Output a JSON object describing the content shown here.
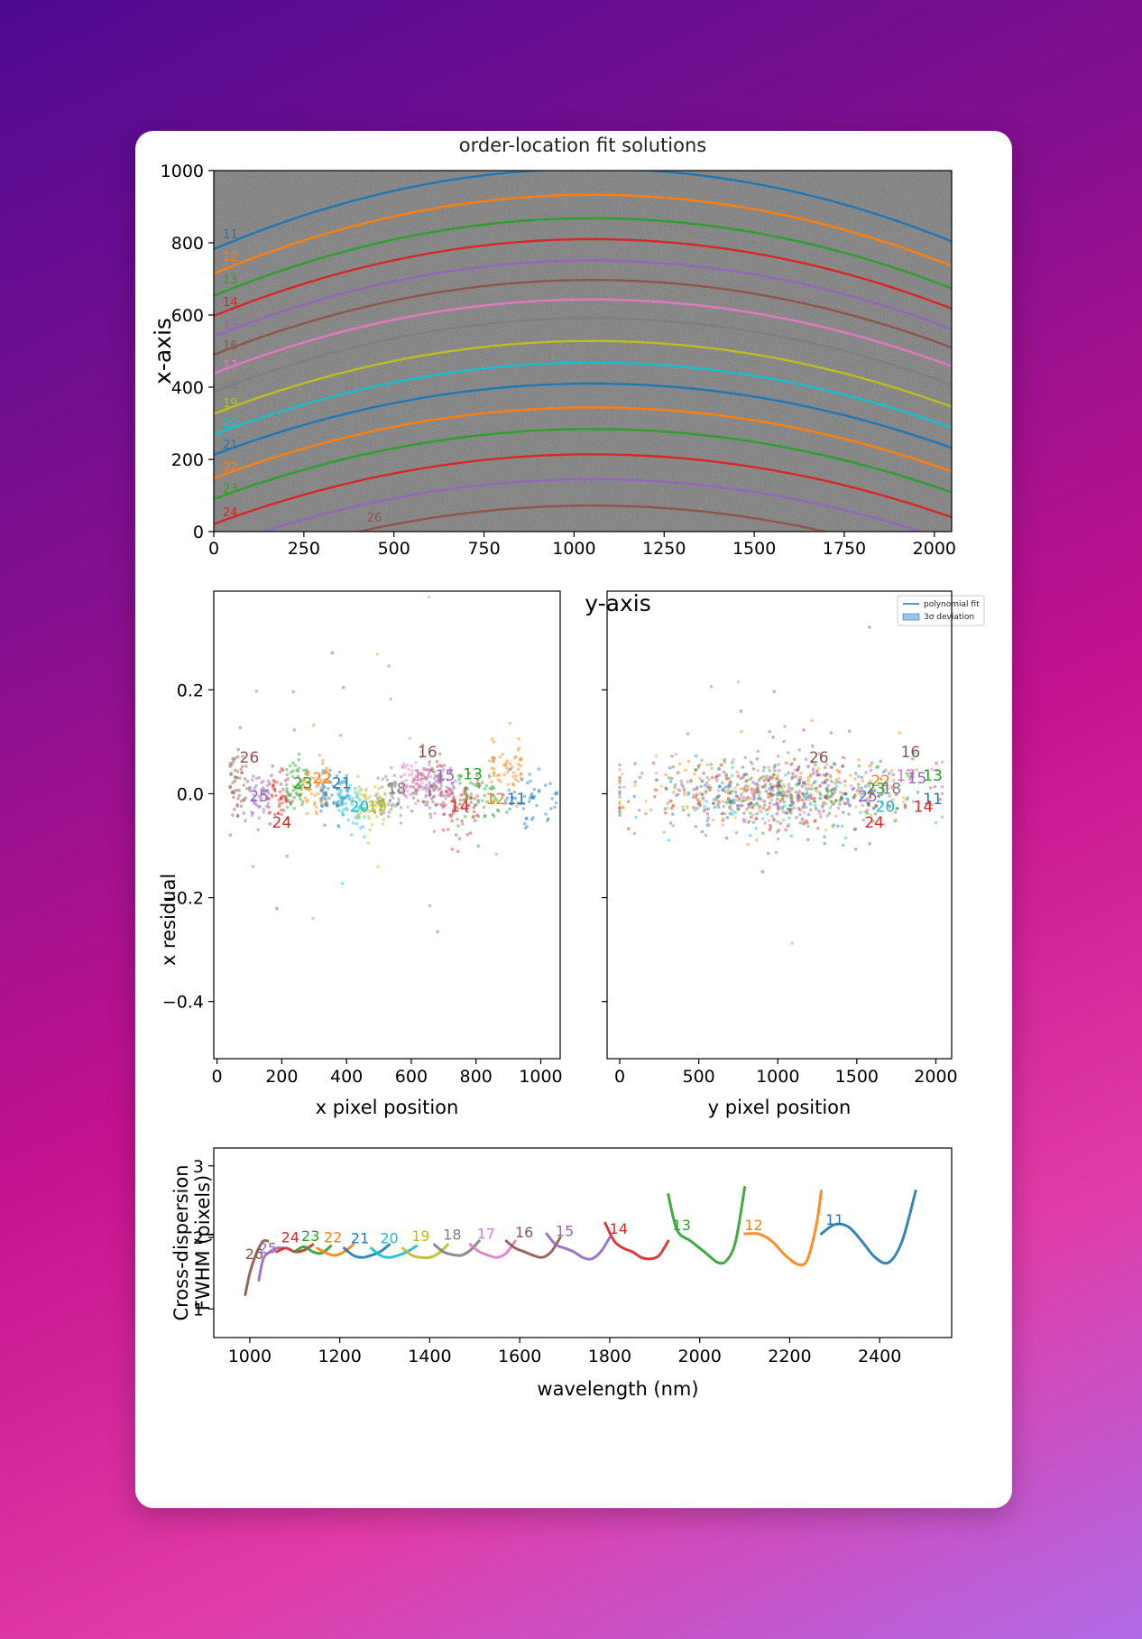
{
  "colors": {
    "tab10": [
      "#1f77b4",
      "#ff7f0e",
      "#2ca02c",
      "#d62728",
      "#9467bd",
      "#8c564b",
      "#e377c2",
      "#7f7f7f",
      "#bcbd22",
      "#17becf"
    ],
    "image_background": "#7a7a7a"
  },
  "chart_data": [
    {
      "id": "order-location",
      "type": "line",
      "title": "order-location fit solutions",
      "xlabel": "y-axis",
      "ylabel": "x-axis",
      "xlim": [
        0,
        2048
      ],
      "ylim": [
        0,
        1000
      ],
      "xticks": [
        "0",
        "250",
        "500",
        "750",
        "1000",
        "1250",
        "1500",
        "1750",
        "2000"
      ],
      "yticks": [
        "0",
        "200",
        "400",
        "600",
        "800",
        "1000"
      ],
      "legend": {
        "placement": "below-right",
        "entries": [
          "polynomial fit",
          "3σ deviation"
        ]
      },
      "curve_model": "x(y) = center - a*(y - 1050)^2",
      "series": [
        {
          "name": "11",
          "center": 1005,
          "a": 0.000202,
          "color": "#1f77b4"
        },
        {
          "name": "12",
          "center": 933,
          "a": 0.000198,
          "color": "#ff7f0e"
        },
        {
          "name": "13",
          "center": 868,
          "a": 0.000195,
          "color": "#2ca02c"
        },
        {
          "name": "14",
          "center": 810,
          "a": 0.000193,
          "color": "#d62728"
        },
        {
          "name": "15",
          "center": 751,
          "a": 0.000191,
          "color": "#9467bd"
        },
        {
          "name": "16",
          "center": 697,
          "a": 0.000188,
          "color": "#8c564b"
        },
        {
          "name": "17",
          "center": 643,
          "a": 0.000186,
          "color": "#e377c2"
        },
        {
          "name": "18",
          "center": 591,
          "a": 0.000185,
          "color": "#7f7f7f"
        },
        {
          "name": "19",
          "center": 528,
          "a": 0.000183,
          "color": "#bcbd22"
        },
        {
          "name": "20",
          "center": 468,
          "a": 0.000181,
          "color": "#17becf"
        },
        {
          "name": "21",
          "center": 410,
          "a": 0.000179,
          "color": "#1f77b4"
        },
        {
          "name": "22",
          "center": 344,
          "a": 0.000178,
          "color": "#ff7f0e"
        },
        {
          "name": "23",
          "center": 284,
          "a": 0.000176,
          "color": "#2ca02c"
        },
        {
          "name": "24",
          "center": 214,
          "a": 0.000175,
          "color": "#d62728"
        },
        {
          "name": "25",
          "center": 145,
          "a": 0.000174,
          "color": "#9467bd"
        },
        {
          "name": "26",
          "center": 72,
          "a": 0.000172,
          "color": "#8c564b"
        }
      ],
      "labels": [
        {
          "text": "11",
          "x": 25,
          "y": 812
        },
        {
          "text": "12",
          "x": 25,
          "y": 750
        },
        {
          "text": "13",
          "x": 25,
          "y": 688
        },
        {
          "text": "14",
          "x": 25,
          "y": 625
        },
        {
          "text": "15",
          "x": 25,
          "y": 562
        },
        {
          "text": "16",
          "x": 25,
          "y": 505
        },
        {
          "text": "17",
          "x": 25,
          "y": 450
        },
        {
          "text": "18",
          "x": 25,
          "y": 395
        },
        {
          "text": "19",
          "x": 25,
          "y": 345
        },
        {
          "text": "20",
          "x": 25,
          "y": 290
        },
        {
          "text": "21",
          "x": 25,
          "y": 230
        },
        {
          "text": "22",
          "x": 25,
          "y": 168
        },
        {
          "text": "23",
          "x": 25,
          "y": 108
        },
        {
          "text": "24",
          "x": 25,
          "y": 42
        },
        {
          "text": "26",
          "x": 425,
          "y": 28
        }
      ]
    },
    {
      "id": "x-residual",
      "type": "scatter",
      "xlabel": "x pixel position",
      "ylabel": "x residual",
      "xlim": [
        -10,
        1060
      ],
      "ylim": [
        -0.51,
        0.39
      ],
      "xticks": [
        "0",
        "200",
        "400",
        "600",
        "800",
        "1000"
      ],
      "yticks": [
        "0.2",
        "0.0",
        "−0.2",
        "−0.4"
      ],
      "ytick_values": [
        0.2,
        0.0,
        -0.2,
        -0.4
      ],
      "xtick_values": [
        0,
        200,
        400,
        600,
        800,
        1000
      ],
      "clusters": [
        {
          "name": "26",
          "color": "#8c564b",
          "xmin": 40,
          "xmax": 95,
          "mean": 0.02,
          "spread": 0.06,
          "n": 55
        },
        {
          "name": "25",
          "color": "#9467bd",
          "xmin": 100,
          "xmax": 160,
          "mean": -0.01,
          "spread": 0.04,
          "n": 50
        },
        {
          "name": "24",
          "color": "#d62728",
          "xmin": 160,
          "xmax": 220,
          "mean": -0.01,
          "spread": 0.05,
          "n": 50
        },
        {
          "name": "23",
          "color": "#2ca02c",
          "xmin": 210,
          "xmax": 280,
          "mean": 0.01,
          "spread": 0.05,
          "n": 55
        },
        {
          "name": "22",
          "color": "#ff7f0e",
          "xmin": 260,
          "xmax": 340,
          "mean": 0.02,
          "spread": 0.05,
          "n": 55
        },
        {
          "name": "21",
          "color": "#1f77b4",
          "xmin": 320,
          "xmax": 410,
          "mean": 0.0,
          "spread": 0.04,
          "n": 60
        },
        {
          "name": "20",
          "color": "#17becf",
          "xmin": 370,
          "xmax": 460,
          "mean": -0.02,
          "spread": 0.04,
          "n": 60
        },
        {
          "name": "19",
          "color": "#bcbd22",
          "xmin": 430,
          "xmax": 520,
          "mean": -0.02,
          "spread": 0.04,
          "n": 55
        },
        {
          "name": "18",
          "color": "#7f7f7f",
          "xmin": 480,
          "xmax": 580,
          "mean": 0.0,
          "spread": 0.04,
          "n": 55
        },
        {
          "name": "17",
          "color": "#e377c2",
          "xmin": 570,
          "xmax": 660,
          "mean": 0.03,
          "spread": 0.04,
          "n": 60
        },
        {
          "name": "16",
          "color": "#8c564b",
          "xmin": 600,
          "xmax": 700,
          "mean": 0.03,
          "spread": 0.05,
          "n": 55
        },
        {
          "name": "15",
          "color": "#9467bd",
          "xmin": 640,
          "xmax": 740,
          "mean": 0.01,
          "spread": 0.04,
          "n": 55
        },
        {
          "name": "14",
          "color": "#d62728",
          "xmin": 690,
          "xmax": 810,
          "mean": -0.02,
          "spread": 0.05,
          "n": 60
        },
        {
          "name": "13",
          "color": "#2ca02c",
          "xmin": 740,
          "xmax": 870,
          "mean": 0.0,
          "spread": 0.05,
          "n": 60
        },
        {
          "name": "12",
          "color": "#ff7f0e",
          "xmin": 840,
          "xmax": 940,
          "mean": 0.05,
          "spread": 0.06,
          "n": 55
        },
        {
          "name": "11",
          "color": "#1f77b4",
          "xmin": 880,
          "xmax": 1050,
          "mean": -0.01,
          "spread": 0.04,
          "n": 55
        }
      ],
      "labels": [
        {
          "text": "26",
          "x": 100,
          "y": 0.06,
          "color": "#8c564b"
        },
        {
          "text": "25",
          "x": 130,
          "y": -0.015,
          "color": "#9467bd"
        },
        {
          "text": "24",
          "x": 200,
          "y": -0.065,
          "color": "#d62728"
        },
        {
          "text": "23",
          "x": 265,
          "y": 0.01,
          "color": "#2ca02c"
        },
        {
          "text": "22",
          "x": 325,
          "y": 0.02,
          "color": "#ff7f0e"
        },
        {
          "text": "21",
          "x": 385,
          "y": 0.01,
          "color": "#1f77b4"
        },
        {
          "text": "20",
          "x": 440,
          "y": -0.035,
          "color": "#17becf"
        },
        {
          "text": "19",
          "x": 495,
          "y": -0.035,
          "color": "#bcbd22"
        },
        {
          "text": "18",
          "x": 555,
          "y": 0.0,
          "color": "#7f7f7f"
        },
        {
          "text": "17",
          "x": 635,
          "y": 0.025,
          "color": "#e377c2"
        },
        {
          "text": "16",
          "x": 650,
          "y": 0.07,
          "color": "#8c564b"
        },
        {
          "text": "15",
          "x": 705,
          "y": 0.025,
          "color": "#9467bd"
        },
        {
          "text": "14",
          "x": 750,
          "y": -0.035,
          "color": "#d62728"
        },
        {
          "text": "13",
          "x": 790,
          "y": 0.028,
          "color": "#2ca02c"
        },
        {
          "text": "12",
          "x": 860,
          "y": -0.02,
          "color": "#ff7f0e"
        },
        {
          "text": "11",
          "x": 925,
          "y": -0.02,
          "color": "#1f77b4"
        }
      ]
    },
    {
      "id": "y-residual",
      "type": "scatter",
      "xlabel": "y pixel position",
      "xlim": [
        -80,
        2100
      ],
      "ylim": [
        -0.51,
        0.39
      ],
      "xticks": [
        "0",
        "500",
        "1000",
        "1500",
        "2000"
      ],
      "xtick_values": [
        0,
        500,
        1000,
        1500,
        2000
      ],
      "labels": [
        {
          "text": "26",
          "x": 1260,
          "y": 0.06,
          "color": "#8c564b"
        },
        {
          "text": "16",
          "x": 1840,
          "y": 0.07,
          "color": "#8c564b"
        },
        {
          "text": "22",
          "x": 1650,
          "y": 0.015,
          "color": "#ff7f0e"
        },
        {
          "text": "17",
          "x": 1810,
          "y": 0.025,
          "color": "#e377c2"
        },
        {
          "text": "15",
          "x": 1880,
          "y": 0.02,
          "color": "#9467bd"
        },
        {
          "text": "13",
          "x": 1980,
          "y": 0.025,
          "color": "#2ca02c"
        },
        {
          "text": "23",
          "x": 1620,
          "y": 0.0,
          "color": "#2ca02c"
        },
        {
          "text": "18",
          "x": 1720,
          "y": 0.0,
          "color": "#7f7f7f"
        },
        {
          "text": "25",
          "x": 1570,
          "y": -0.015,
          "color": "#9467bd"
        },
        {
          "text": "20",
          "x": 1680,
          "y": -0.035,
          "color": "#17becf"
        },
        {
          "text": "11",
          "x": 1980,
          "y": -0.02,
          "color": "#1f77b4"
        },
        {
          "text": "14",
          "x": 1920,
          "y": -0.035,
          "color": "#d62728"
        },
        {
          "text": "24",
          "x": 1610,
          "y": -0.065,
          "color": "#d62728"
        }
      ]
    },
    {
      "id": "fwhm",
      "type": "line",
      "xlabel": "wavelength (nm)",
      "ylabel": "Cross-dispersion\nFWHM (pixels)",
      "ylabel_lines": [
        "Cross-dispersion",
        "FWHM (pixels)"
      ],
      "xlim": [
        920,
        2560
      ],
      "ylim": [
        0.6,
        3.25
      ],
      "xticks": [
        "1000",
        "1200",
        "1400",
        "1600",
        "1800",
        "2000",
        "2200",
        "2400"
      ],
      "xtick_values": [
        1000,
        1200,
        1400,
        1600,
        1800,
        2000,
        2200,
        2400
      ],
      "yticks": [
        "1",
        "2",
        "3"
      ],
      "ytick_values": [
        1,
        2,
        3
      ],
      "series": [
        {
          "name": "26",
          "color": "#8c564b",
          "x": [
            990,
            1000,
            1010,
            1020,
            1030,
            1040
          ],
          "y": [
            1.2,
            1.5,
            1.7,
            1.85,
            1.95,
            1.95
          ],
          "label_x": 1010,
          "label_y": 1.7
        },
        {
          "name": "25",
          "color": "#9467bd",
          "x": [
            1020,
            1030,
            1045,
            1060,
            1075
          ],
          "y": [
            1.4,
            1.7,
            1.8,
            1.85,
            1.85
          ],
          "label_x": 1040,
          "label_y": 1.78
        },
        {
          "name": "24",
          "color": "#d62728",
          "x": [
            1060,
            1080,
            1100,
            1120,
            1140
          ],
          "y": [
            1.8,
            1.85,
            1.8,
            1.82,
            1.9
          ],
          "label_x": 1090,
          "label_y": 1.93
        },
        {
          "name": "23",
          "color": "#2ca02c",
          "x": [
            1100,
            1120,
            1140,
            1160,
            1180
          ],
          "y": [
            1.8,
            1.87,
            1.8,
            1.78,
            1.88
          ],
          "label_x": 1135,
          "label_y": 1.95
        },
        {
          "name": "22",
          "color": "#ff7f0e",
          "x": [
            1150,
            1170,
            1190,
            1210,
            1230
          ],
          "y": [
            1.85,
            1.78,
            1.75,
            1.8,
            1.9
          ],
          "label_x": 1185,
          "label_y": 1.93
        },
        {
          "name": "21",
          "color": "#1f77b4",
          "x": [
            1210,
            1230,
            1250,
            1270,
            1290,
            1310
          ],
          "y": [
            1.85,
            1.75,
            1.72,
            1.75,
            1.8,
            1.9
          ],
          "label_x": 1245,
          "label_y": 1.92
        },
        {
          "name": "20",
          "color": "#17becf",
          "x": [
            1270,
            1290,
            1310,
            1330,
            1350,
            1370
          ],
          "y": [
            1.85,
            1.75,
            1.72,
            1.75,
            1.8,
            1.88
          ],
          "label_x": 1310,
          "label_y": 1.92
        },
        {
          "name": "19",
          "color": "#bcbd22",
          "x": [
            1340,
            1360,
            1380,
            1400,
            1420,
            1440
          ],
          "y": [
            1.85,
            1.75,
            1.72,
            1.72,
            1.78,
            1.9
          ],
          "label_x": 1380,
          "label_y": 1.95
        },
        {
          "name": "18",
          "color": "#7f7f7f",
          "x": [
            1410,
            1430,
            1450,
            1470,
            1490,
            1510
          ],
          "y": [
            1.9,
            1.8,
            1.76,
            1.75,
            1.82,
            1.95
          ],
          "label_x": 1450,
          "label_y": 1.97
        },
        {
          "name": "17",
          "color": "#e377c2",
          "x": [
            1490,
            1510,
            1530,
            1550,
            1570,
            1590
          ],
          "y": [
            1.9,
            1.8,
            1.75,
            1.72,
            1.78,
            1.95
          ],
          "label_x": 1525,
          "label_y": 1.98
        },
        {
          "name": "16",
          "color": "#8c564b",
          "x": [
            1570,
            1590,
            1610,
            1630,
            1650,
            1670,
            1690
          ],
          "y": [
            1.95,
            1.85,
            1.8,
            1.75,
            1.72,
            1.8,
            2.0
          ],
          "label_x": 1610,
          "label_y": 2.0
        },
        {
          "name": "15",
          "color": "#9467bd",
          "x": [
            1660,
            1680,
            1700,
            1720,
            1740,
            1760,
            1780,
            1800
          ],
          "y": [
            2.05,
            1.9,
            1.85,
            1.8,
            1.72,
            1.7,
            1.8,
            2.0
          ],
          "label_x": 1700,
          "label_y": 2.02
        },
        {
          "name": "14",
          "color": "#d62728",
          "x": [
            1790,
            1810,
            1830,
            1850,
            1870,
            1890,
            1910,
            1930
          ],
          "y": [
            2.2,
            1.95,
            1.85,
            1.8,
            1.72,
            1.7,
            1.75,
            1.95
          ],
          "label_x": 1820,
          "label_y": 2.05
        },
        {
          "name": "13",
          "color": "#2ca02c",
          "x": [
            1930,
            1950,
            1980,
            2010,
            2040,
            2060,
            2080,
            2100
          ],
          "y": [
            2.6,
            2.1,
            1.95,
            1.8,
            1.65,
            1.68,
            1.95,
            2.7
          ],
          "label_x": 1960,
          "label_y": 2.1
        },
        {
          "name": "12",
          "color": "#ff7f0e",
          "x": [
            2100,
            2130,
            2160,
            2190,
            2220,
            2240,
            2260,
            2270
          ],
          "y": [
            2.05,
            2.05,
            1.95,
            1.75,
            1.62,
            1.7,
            2.2,
            2.65
          ],
          "label_x": 2120,
          "label_y": 2.1
        },
        {
          "name": "11",
          "color": "#1f77b4",
          "x": [
            2270,
            2300,
            2330,
            2360,
            2390,
            2420,
            2450,
            2480
          ],
          "y": [
            2.05,
            2.18,
            2.15,
            1.95,
            1.72,
            1.65,
            1.95,
            2.65
          ],
          "label_x": 2300,
          "label_y": 2.18
        }
      ]
    }
  ]
}
